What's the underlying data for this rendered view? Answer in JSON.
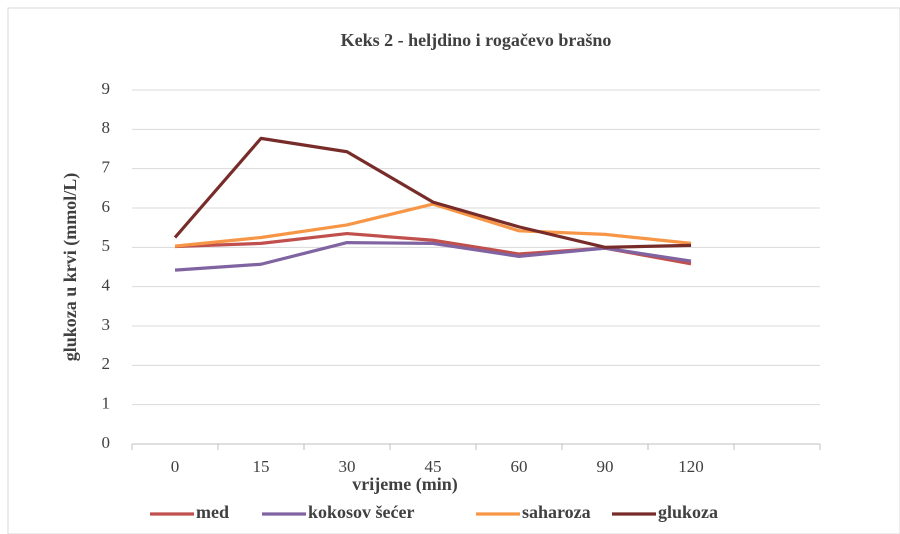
{
  "chart_data": {
    "type": "line",
    "title": "Keks 2 - heljdino i rogačevo brašno",
    "x_label": "vrijeme (min)",
    "y_label": "glukoza u krvi (mmol/L)",
    "categories": [
      "0",
      "15",
      "30",
      "45",
      "60",
      "90",
      "120",
      null
    ],
    "series": [
      {
        "name": "med",
        "color": "#c0504d",
        "values": [
          5.02,
          5.1,
          5.35,
          5.18,
          4.83,
          4.98,
          4.58,
          null
        ]
      },
      {
        "name": "kokosov šećer",
        "color": "#8064a2",
        "values": [
          4.42,
          4.57,
          5.12,
          5.1,
          4.77,
          4.98,
          4.65,
          null
        ]
      },
      {
        "name": "saharoza",
        "color": "#f79646",
        "values": [
          5.03,
          5.25,
          5.57,
          6.1,
          5.42,
          5.33,
          5.1,
          null
        ]
      },
      {
        "name": "glukoza",
        "color": "#772c2a",
        "values": [
          5.25,
          7.77,
          7.43,
          6.15,
          5.52,
          5.0,
          5.05,
          null
        ]
      }
    ],
    "ylim": [
      0,
      9
    ],
    "yticks": [
      0,
      1,
      2,
      3,
      4,
      5,
      6,
      7,
      8,
      9
    ],
    "grid": true,
    "legend": "bottom"
  }
}
